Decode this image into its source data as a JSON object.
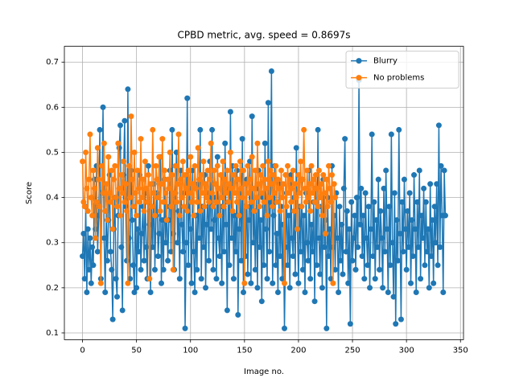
{
  "chart_data": {
    "type": "line",
    "title": "CPBD metric, avg. speed = 0.8697s",
    "xlabel": "Image no.",
    "ylabel": "Score",
    "xlim": [
      -16.8,
      352.8
    ],
    "ylim": [
      0.085,
      0.735
    ],
    "xticks": [
      0,
      50,
      100,
      150,
      200,
      250,
      300,
      350
    ],
    "yticks": [
      0.1,
      0.2,
      0.3,
      0.4,
      0.5,
      0.6,
      0.7
    ],
    "grid": true,
    "legend": "upper right",
    "series": [
      {
        "name": "Blurry",
        "color": "#1f77b4",
        "x": [
          0,
          1,
          2,
          3,
          4,
          5,
          6,
          7,
          8,
          9,
          10,
          11,
          12,
          13,
          14,
          15,
          16,
          17,
          18,
          19,
          20,
          21,
          22,
          23,
          24,
          25,
          26,
          27,
          28,
          29,
          30,
          31,
          32,
          33,
          34,
          35,
          36,
          37,
          38,
          39,
          40,
          41,
          42,
          43,
          44,
          45,
          46,
          47,
          48,
          49,
          50,
          51,
          52,
          53,
          54,
          55,
          56,
          57,
          58,
          59,
          60,
          61,
          62,
          63,
          64,
          65,
          66,
          67,
          68,
          69,
          70,
          71,
          72,
          73,
          74,
          75,
          76,
          77,
          78,
          79,
          80,
          81,
          82,
          83,
          84,
          85,
          86,
          87,
          88,
          89,
          90,
          91,
          92,
          93,
          94,
          95,
          96,
          97,
          98,
          99,
          100,
          101,
          102,
          103,
          104,
          105,
          106,
          107,
          108,
          109,
          110,
          111,
          112,
          113,
          114,
          115,
          116,
          117,
          118,
          119,
          120,
          121,
          122,
          123,
          124,
          125,
          126,
          127,
          128,
          129,
          130,
          131,
          132,
          133,
          134,
          135,
          136,
          137,
          138,
          139,
          140,
          141,
          142,
          143,
          144,
          145,
          146,
          147,
          148,
          149,
          150,
          151,
          152,
          153,
          154,
          155,
          156,
          157,
          158,
          159,
          160,
          161,
          162,
          163,
          164,
          165,
          166,
          167,
          168,
          169,
          170,
          171,
          172,
          173,
          174,
          175,
          176,
          177,
          178,
          179,
          180,
          181,
          182,
          183,
          184,
          185,
          186,
          187,
          188,
          189,
          190,
          191,
          192,
          193,
          194,
          195,
          196,
          197,
          198,
          199,
          200,
          201,
          202,
          203,
          204,
          205,
          206,
          207,
          208,
          209,
          210,
          211,
          212,
          213,
          214,
          215,
          216,
          217,
          218,
          219,
          220,
          221,
          222,
          223,
          224,
          225,
          226,
          227,
          228,
          229,
          230,
          231,
          232,
          233,
          234,
          235,
          236,
          237,
          238,
          239,
          240,
          241,
          242,
          243,
          244,
          245,
          246,
          247,
          248,
          249,
          250,
          251,
          252,
          253,
          254,
          255,
          256,
          257,
          258,
          259,
          260,
          261,
          262,
          263,
          264,
          265,
          266,
          267,
          268,
          269,
          270,
          271,
          272,
          273,
          274,
          275,
          276,
          277,
          278,
          279,
          280,
          281,
          282,
          283,
          284,
          285,
          286,
          287,
          288,
          289,
          290,
          291,
          292,
          293,
          294,
          295,
          296,
          297,
          298,
          299,
          300,
          301,
          302,
          303,
          304,
          305,
          306,
          307,
          308,
          309,
          310,
          311,
          312,
          313,
          314,
          315,
          316,
          317,
          318,
          319,
          320,
          321,
          322,
          323,
          324,
          325,
          326,
          327,
          328,
          329,
          330,
          331,
          332,
          333,
          334,
          335,
          336
        ],
        "values": [
          0.27,
          0.32,
          0.22,
          0.38,
          0.19,
          0.33,
          0.24,
          0.31,
          0.21,
          0.29,
          0.25,
          0.44,
          0.33,
          0.47,
          0.28,
          0.36,
          0.55,
          0.22,
          0.41,
          0.6,
          0.31,
          0.19,
          0.37,
          0.26,
          0.35,
          0.45,
          0.28,
          0.24,
          0.13,
          0.33,
          0.4,
          0.22,
          0.18,
          0.36,
          0.51,
          0.56,
          0.29,
          0.15,
          0.45,
          0.57,
          0.38,
          0.26,
          0.64,
          0.31,
          0.22,
          0.46,
          0.35,
          0.25,
          0.19,
          0.41,
          0.2,
          0.33,
          0.28,
          0.45,
          0.24,
          0.32,
          0.38,
          0.26,
          0.41,
          0.29,
          0.22,
          0.47,
          0.34,
          0.19,
          0.38,
          0.29,
          0.43,
          0.24,
          0.36,
          0.41,
          0.27,
          0.32,
          0.49,
          0.21,
          0.35,
          0.24,
          0.44,
          0.3,
          0.38,
          0.26,
          0.35,
          0.46,
          0.28,
          0.55,
          0.32,
          0.24,
          0.41,
          0.5,
          0.3,
          0.37,
          0.22,
          0.46,
          0.34,
          0.28,
          0.41,
          0.11,
          0.3,
          0.62,
          0.25,
          0.42,
          0.33,
          0.21,
          0.46,
          0.28,
          0.19,
          0.36,
          0.24,
          0.43,
          0.31,
          0.55,
          0.22,
          0.38,
          0.29,
          0.45,
          0.2,
          0.34,
          0.41,
          0.26,
          0.48,
          0.33,
          0.55,
          0.24,
          0.35,
          0.4,
          0.22,
          0.49,
          0.31,
          0.27,
          0.38,
          0.21,
          0.44,
          0.28,
          0.52,
          0.34,
          0.15,
          0.42,
          0.25,
          0.59,
          0.31,
          0.47,
          0.22,
          0.36,
          0.28,
          0.46,
          0.14,
          0.33,
          0.41,
          0.26,
          0.53,
          0.19,
          0.38,
          0.27,
          0.44,
          0.23,
          0.35,
          0.48,
          0.21,
          0.58,
          0.3,
          0.37,
          0.24,
          0.42,
          0.2,
          0.46,
          0.29,
          0.35,
          0.17,
          0.4,
          0.25,
          0.52,
          0.33,
          0.22,
          0.61,
          0.28,
          0.39,
          0.68,
          0.21,
          0.36,
          0.47,
          0.25,
          0.32,
          0.19,
          0.43,
          0.27,
          0.38,
          0.22,
          0.34,
          0.11,
          0.29,
          0.41,
          0.25,
          0.36,
          0.2,
          0.45,
          0.31,
          0.27,
          0.4,
          0.23,
          0.51,
          0.33,
          0.21,
          0.38,
          0.28,
          0.44,
          0.24,
          0.36,
          0.19,
          0.41,
          0.3,
          0.26,
          0.46,
          0.22,
          0.34,
          0.28,
          0.39,
          0.17,
          0.42,
          0.25,
          0.55,
          0.31,
          0.23,
          0.38,
          0.2,
          0.44,
          0.29,
          0.35,
          0.11,
          0.4,
          0.27,
          0.33,
          0.22,
          0.47,
          0.29,
          0.36,
          0.24,
          0.41,
          0.31,
          0.19,
          0.38,
          0.26,
          0.34,
          0.23,
          0.42,
          0.53,
          0.28,
          0.37,
          0.21,
          0.33,
          0.12,
          0.39,
          0.26,
          0.31,
          0.36,
          0.24,
          0.4,
          0.29,
          0.66,
          0.34,
          0.42,
          0.27,
          0.36,
          0.22,
          0.41,
          0.31,
          0.25,
          0.38,
          0.2,
          0.33,
          0.54,
          0.27,
          0.39,
          0.22,
          0.35,
          0.29,
          0.44,
          0.24,
          0.37,
          0.31,
          0.2,
          0.42,
          0.28,
          0.46,
          0.33,
          0.19,
          0.38,
          0.25,
          0.54,
          0.3,
          0.18,
          0.41,
          0.12,
          0.35,
          0.26,
          0.55,
          0.32,
          0.13,
          0.39,
          0.28,
          0.44,
          0.33,
          0.24,
          0.37,
          0.29,
          0.41,
          0.21,
          0.35,
          0.27,
          0.45,
          0.33,
          0.19,
          0.39,
          0.29,
          0.46,
          0.22,
          0.36,
          0.31,
          0.42,
          0.25,
          0.39,
          0.28,
          0.33,
          0.2,
          0.43,
          0.27,
          0.35,
          0.21,
          0.38,
          0.3,
          0.43,
          0.25,
          0.56,
          0.29,
          0.47,
          0.36,
          0.19,
          0.46,
          0.36
        ]
      },
      {
        "name": "No problems",
        "color": "#ff7f0e",
        "x": [
          0,
          1,
          2,
          3,
          4,
          5,
          6,
          7,
          8,
          9,
          10,
          11,
          12,
          13,
          14,
          15,
          16,
          17,
          18,
          19,
          20,
          21,
          22,
          23,
          24,
          25,
          26,
          27,
          28,
          29,
          30,
          31,
          32,
          33,
          34,
          35,
          36,
          37,
          38,
          39,
          40,
          41,
          42,
          43,
          44,
          45,
          46,
          47,
          48,
          49,
          50,
          51,
          52,
          53,
          54,
          55,
          56,
          57,
          58,
          59,
          60,
          61,
          62,
          63,
          64,
          65,
          66,
          67,
          68,
          69,
          70,
          71,
          72,
          73,
          74,
          75,
          76,
          77,
          78,
          79,
          80,
          81,
          82,
          83,
          84,
          85,
          86,
          87,
          88,
          89,
          90,
          91,
          92,
          93,
          94,
          95,
          96,
          97,
          98,
          99,
          100,
          101,
          102,
          103,
          104,
          105,
          106,
          107,
          108,
          109,
          110,
          111,
          112,
          113,
          114,
          115,
          116,
          117,
          118,
          119,
          120,
          121,
          122,
          123,
          124,
          125,
          126,
          127,
          128,
          129,
          130,
          131,
          132,
          133,
          134,
          135,
          136,
          137,
          138,
          139,
          140,
          141,
          142,
          143,
          144,
          145,
          146,
          147,
          148,
          149,
          150,
          151,
          152,
          153,
          154,
          155,
          156,
          157,
          158,
          159,
          160,
          161,
          162,
          163,
          164,
          165,
          166,
          167,
          168,
          169,
          170,
          171,
          172,
          173,
          174,
          175,
          176,
          177,
          178,
          179,
          180,
          181,
          182,
          183,
          184,
          185,
          186,
          187,
          188,
          189,
          190,
          191,
          192,
          193,
          194,
          195,
          196,
          197,
          198,
          199,
          200,
          201,
          202,
          203,
          204,
          205,
          206,
          207,
          208,
          209,
          210,
          211,
          212,
          213,
          214,
          215,
          216,
          217,
          218,
          219,
          220,
          221,
          222,
          223,
          224,
          225,
          226,
          227,
          228,
          229,
          230,
          231,
          232,
          233,
          234
        ],
        "values": [
          0.48,
          0.39,
          0.38,
          0.5,
          0.42,
          0.37,
          0.44,
          0.54,
          0.4,
          0.36,
          0.46,
          0.42,
          0.31,
          0.39,
          0.51,
          0.44,
          0.38,
          0.21,
          0.47,
          0.41,
          0.52,
          0.37,
          0.43,
          0.35,
          0.49,
          0.41,
          0.39,
          0.46,
          0.33,
          0.44,
          0.47,
          0.4,
          0.38,
          0.52,
          0.42,
          0.36,
          0.45,
          0.41,
          0.48,
          0.39,
          0.43,
          0.37,
          0.21,
          0.47,
          0.4,
          0.58,
          0.44,
          0.38,
          0.5,
          0.41,
          0.36,
          0.46,
          0.42,
          0.39,
          0.53,
          0.4,
          0.44,
          0.37,
          0.48,
          0.42,
          0.39,
          0.45,
          0.22,
          0.43,
          0.38,
          0.55,
          0.41,
          0.36,
          0.47,
          0.44,
          0.4,
          0.49,
          0.37,
          0.43,
          0.53,
          0.39,
          0.46,
          0.41,
          0.35,
          0.44,
          0.42,
          0.5,
          0.38,
          0.45,
          0.24,
          0.41,
          0.47,
          0.39,
          0.43,
          0.54,
          0.36,
          0.44,
          0.4,
          0.48,
          0.38,
          0.45,
          0.42,
          0.37,
          0.46,
          0.41,
          0.49,
          0.39,
          0.43,
          0.36,
          0.47,
          0.42,
          0.39,
          0.51,
          0.44,
          0.37,
          0.45,
          0.41,
          0.48,
          0.38,
          0.43,
          0.4,
          0.46,
          0.39,
          0.44,
          0.52,
          0.41,
          0.38,
          0.46,
          0.43,
          0.39,
          0.47,
          0.42,
          0.36,
          0.45,
          0.4,
          0.48,
          0.38,
          0.44,
          0.41,
          0.46,
          0.39,
          0.43,
          0.5,
          0.42,
          0.37,
          0.45,
          0.41,
          0.47,
          0.39,
          0.44,
          0.36,
          0.48,
          0.42,
          0.4,
          0.46,
          0.21,
          0.43,
          0.38,
          0.47,
          0.41,
          0.44,
          0.39,
          0.49,
          0.42,
          0.37,
          0.46,
          0.4,
          0.52,
          0.43,
          0.38,
          0.45,
          0.41,
          0.47,
          0.39,
          0.44,
          0.42,
          0.36,
          0.48,
          0.4,
          0.46,
          0.43,
          0.38,
          0.45,
          0.41,
          0.47,
          0.39,
          0.44,
          0.42,
          0.37,
          0.46,
          0.4,
          0.43,
          0.21,
          0.45,
          0.38,
          0.47,
          0.41,
          0.44,
          0.39,
          0.42,
          0.46,
          0.37,
          0.43,
          0.4,
          0.33,
          0.45,
          0.41,
          0.48,
          0.38,
          0.44,
          0.55,
          0.42,
          0.39,
          0.46,
          0.4,
          0.43,
          0.37,
          0.47,
          0.41,
          0.44,
          0.39,
          0.45,
          0.42,
          0.38,
          0.46,
          0.4,
          0.43,
          0.36,
          0.45,
          0.41,
          0.32,
          0.44,
          0.38,
          0.47,
          0.42,
          0.39,
          0.45,
          0.21,
          0.43,
          0.4
        ]
      }
    ]
  }
}
